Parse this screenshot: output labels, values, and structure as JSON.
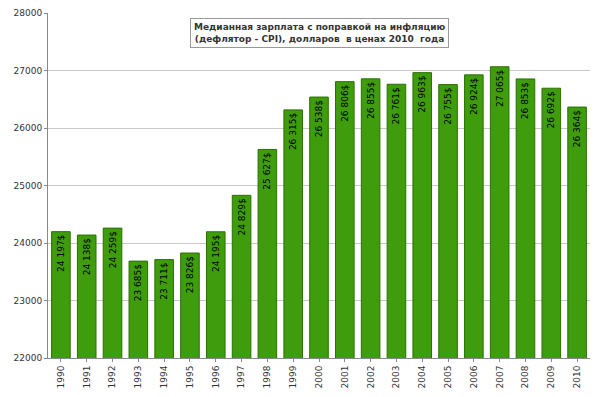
{
  "chart_data": {
    "type": "bar",
    "title": "Медианная зарплата с поправкой на инфляцию\n(дефлятор - CPI), долларов  в ценах 2010  года",
    "categories": [
      "1990",
      "1991",
      "1992",
      "1993",
      "1994",
      "1995",
      "1996",
      "1997",
      "1998",
      "1999",
      "2000",
      "2001",
      "2002",
      "2003",
      "2004",
      "2005",
      "2006",
      "2007",
      "2008",
      "2009",
      "2010"
    ],
    "values": [
      24197,
      24138,
      24259,
      23685,
      23711,
      23826,
      24195,
      24829,
      25627,
      26315,
      26538,
      26806,
      26855,
      26761,
      26963,
      26755,
      26924,
      27065,
      26853,
      26692,
      26364
    ],
    "value_labels": [
      "24 197$",
      "24 138$",
      "24 259$",
      "23 685$",
      "23 711$",
      "23 826$",
      "24 195$",
      "24 829$",
      "25 627$",
      "26 315$",
      "26 538$",
      "26 806$",
      "26 855$",
      "26 761$",
      "26 963$",
      "26 755$",
      "26 924$",
      "27 065$",
      "26 853$",
      "26 692$",
      "26 364$"
    ],
    "color": "#3f9c0c",
    "ylim": [
      22000,
      28000
    ],
    "yticks": [
      22000,
      23000,
      24000,
      25000,
      26000,
      27000,
      28000
    ],
    "grid": true,
    "data_labels": true
  }
}
